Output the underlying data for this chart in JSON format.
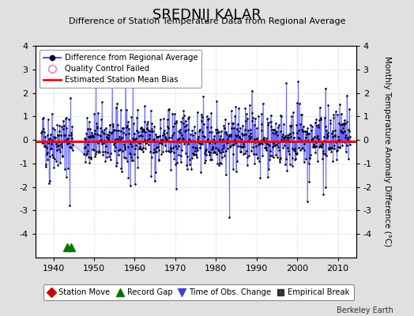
{
  "title": "SREDNIJ KALAR",
  "subtitle": "Difference of Station Temperature Data from Regional Average",
  "ylabel": "Monthly Temperature Anomaly Difference (°C)",
  "xlabel_years": [
    1940,
    1950,
    1960,
    1970,
    1980,
    1990,
    2000,
    2010
  ],
  "xlim": [
    1935.5,
    2014.5
  ],
  "ylim": [
    -5,
    4
  ],
  "yticks": [
    -4,
    -3,
    -2,
    -1,
    0,
    1,
    2,
    3,
    4
  ],
  "bias_value": -0.08,
  "record_gaps": [
    1943.3,
    1944.3
  ],
  "background_color": "#e0e0e0",
  "plot_background": "#ffffff",
  "line_color": "#5555ff",
  "line_fill_color": "#aaaaff",
  "bias_color": "#ff0000",
  "dot_color": "#000000",
  "grid_color": "#cccccc",
  "seed": 42,
  "n_months": 912,
  "start_year": 1937.0,
  "end_year": 2013.0,
  "watermark": "Berkeley Earth",
  "title_fontsize": 13,
  "subtitle_fontsize": 8,
  "tick_fontsize": 8,
  "ylabel_fontsize": 7.5
}
